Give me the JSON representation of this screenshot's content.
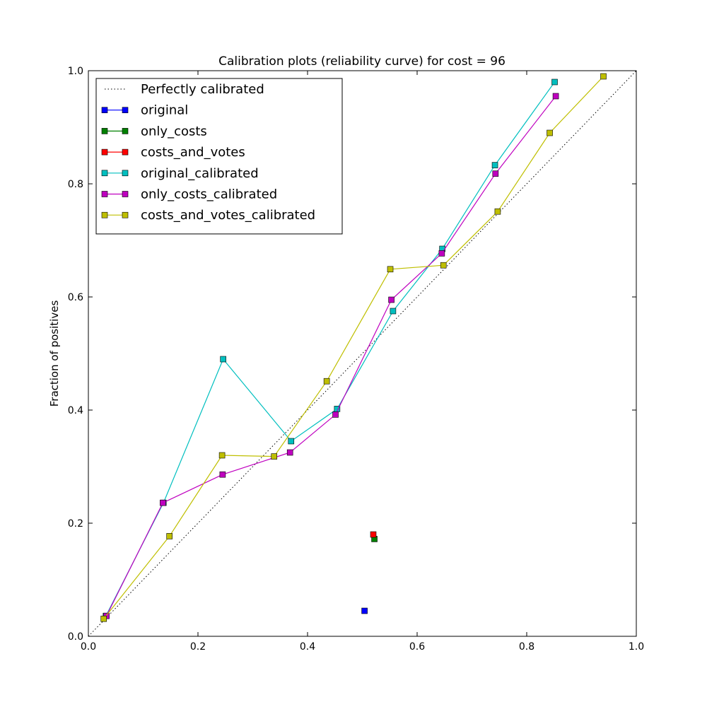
{
  "chart_data": {
    "type": "line",
    "title": "Calibration plots  (reliability curve) for cost = 96",
    "xlabel": "",
    "ylabel": "Fraction of positives",
    "xlim": [
      0.0,
      1.0
    ],
    "ylim": [
      0.0,
      1.0
    ],
    "xticks": [
      "0.0",
      "0.2",
      "0.4",
      "0.6",
      "0.8",
      "1.0"
    ],
    "yticks": [
      "0.0",
      "0.2",
      "0.4",
      "0.6",
      "0.8",
      "1.0"
    ],
    "grid": false,
    "legend_position": "top-left",
    "reference_line": {
      "name": "Perfectly calibrated",
      "color": "#000000",
      "style": "dotted",
      "points": [
        [
          0.0,
          0.0
        ],
        [
          1.0,
          1.0
        ]
      ]
    },
    "series": [
      {
        "name": "original",
        "color": "#0000ff",
        "points": [
          [
            0.504,
            0.045
          ]
        ]
      },
      {
        "name": "only_costs",
        "color": "#008000",
        "points": [
          [
            0.522,
            0.172
          ]
        ]
      },
      {
        "name": "costs_and_votes",
        "color": "#ff0000",
        "points": [
          [
            0.52,
            0.18
          ]
        ]
      },
      {
        "name": "original_calibrated",
        "color": "#00bfbf",
        "points": [
          [
            0.032,
            0.036
          ],
          [
            0.137,
            0.236
          ],
          [
            0.246,
            0.49
          ],
          [
            0.37,
            0.345
          ],
          [
            0.454,
            0.402
          ],
          [
            0.556,
            0.575
          ],
          [
            0.646,
            0.685
          ],
          [
            0.742,
            0.833
          ],
          [
            0.851,
            0.98
          ]
        ]
      },
      {
        "name": "only_costs_calibrated",
        "color": "#bf00bf",
        "points": [
          [
            0.033,
            0.036
          ],
          [
            0.136,
            0.236
          ],
          [
            0.245,
            0.286
          ],
          [
            0.368,
            0.325
          ],
          [
            0.451,
            0.392
          ],
          [
            0.553,
            0.595
          ],
          [
            0.645,
            0.677
          ],
          [
            0.743,
            0.818
          ],
          [
            0.853,
            0.955
          ]
        ]
      },
      {
        "name": "costs_and_votes_calibrated",
        "color": "#bfbf00",
        "points": [
          [
            0.028,
            0.031
          ],
          [
            0.148,
            0.177
          ],
          [
            0.244,
            0.32
          ],
          [
            0.339,
            0.318
          ],
          [
            0.435,
            0.451
          ],
          [
            0.551,
            0.649
          ],
          [
            0.648,
            0.656
          ],
          [
            0.747,
            0.751
          ],
          [
            0.842,
            0.89
          ],
          [
            0.94,
            0.99
          ]
        ]
      }
    ]
  }
}
